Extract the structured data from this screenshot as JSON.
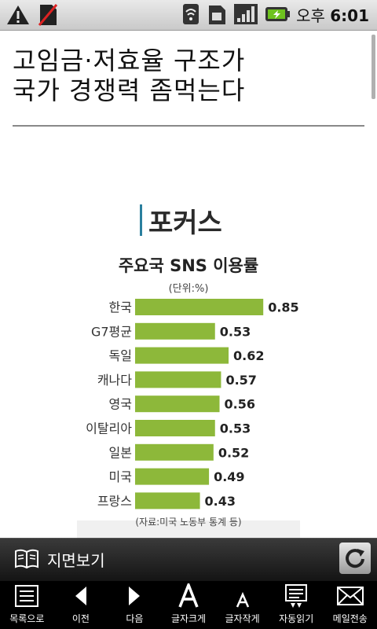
{
  "status_bar": {
    "time_prefix": "오후",
    "time": "6:01"
  },
  "article": {
    "title_line1": "고임금·저효율 구조가",
    "title_line2": "국가 경쟁력 좀먹는다"
  },
  "infographic": {
    "heading": "포커스"
  },
  "chart_data": {
    "type": "bar",
    "orientation": "horizontal",
    "title": "주요국 SNS 이용률",
    "unit_note": "(단위:%)",
    "source_note": "(자료:미국 노동부 통계 등)",
    "categories": [
      "한국",
      "G7평균",
      "독일",
      "캐나다",
      "영국",
      "이탈리아",
      "일본",
      "미국",
      "프랑스"
    ],
    "values": [
      0.85,
      0.53,
      0.62,
      0.57,
      0.56,
      0.53,
      0.52,
      0.49,
      0.43
    ],
    "value_labels": [
      "0.85",
      "0.53",
      "0.62",
      "0.57",
      "0.56",
      "0.53",
      "0.52",
      "0.49",
      "0.43"
    ],
    "bar_color": "#8db83a"
  },
  "view_bar": {
    "label": "지면보기"
  },
  "toolbar": {
    "items": [
      {
        "label": "목록으로",
        "icon": "list-icon"
      },
      {
        "label": "이전",
        "icon": "arrow-left-icon"
      },
      {
        "label": "다음",
        "icon": "arrow-right-icon"
      },
      {
        "label": "글자크게",
        "icon": "font-larger-icon"
      },
      {
        "label": "글자작게",
        "icon": "font-smaller-icon"
      },
      {
        "label": "자동읽기",
        "icon": "auto-read-icon"
      },
      {
        "label": "메일전송",
        "icon": "mail-icon"
      }
    ]
  }
}
